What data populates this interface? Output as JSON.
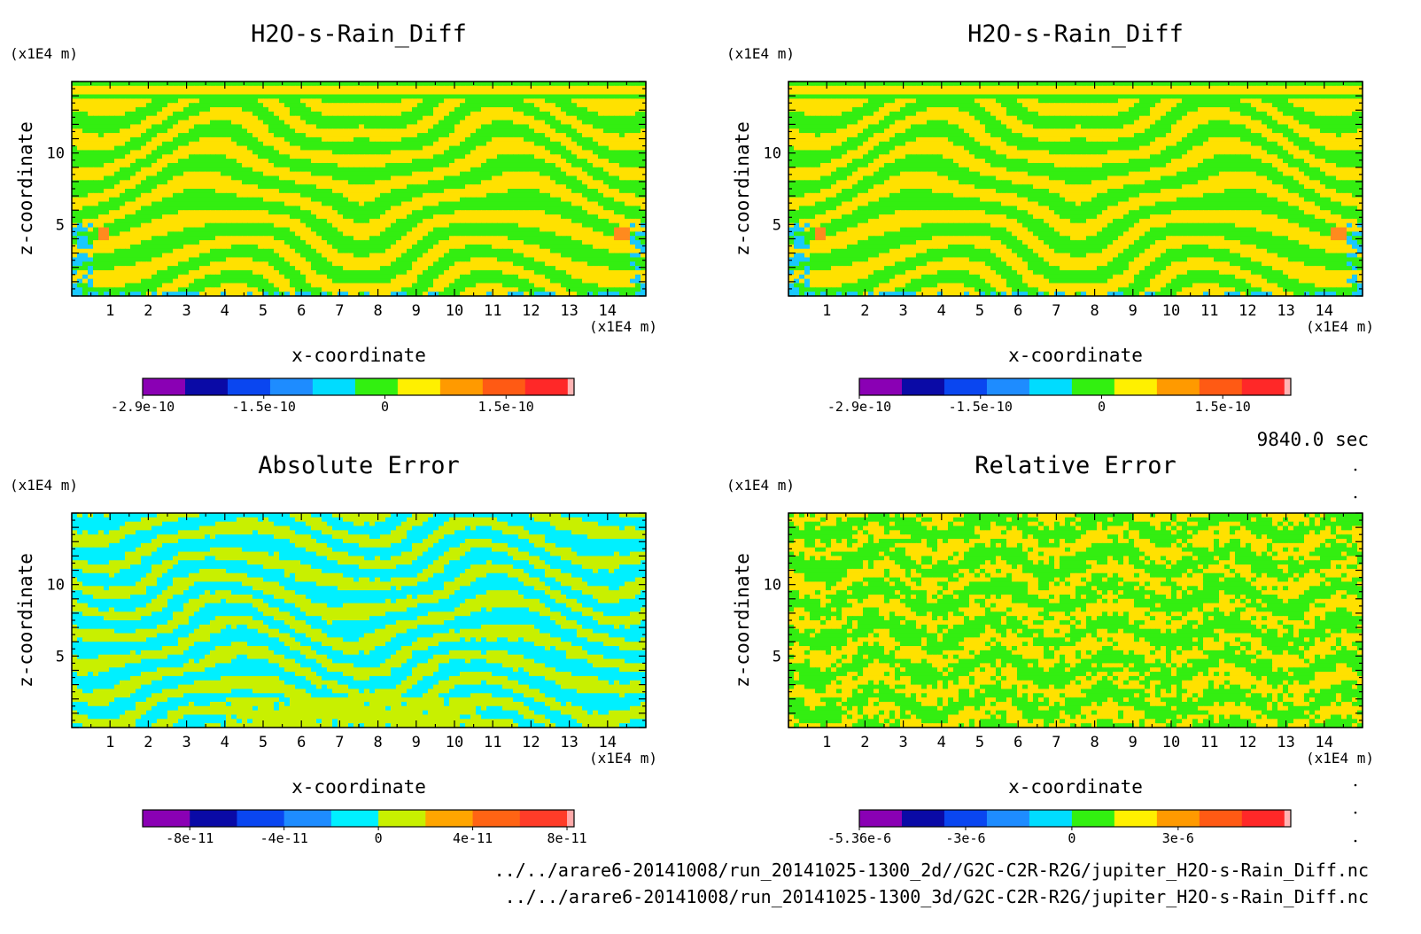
{
  "footer": {
    "time": "9840.0 sec",
    "file_1": "../../arare6-20141008/run_20141025-1300_2d//G2C-C2R-R2G/jupiter_H2O-s-Rain_Diff.nc",
    "file_2": "../../arare6-20141008/run_20141025-1300_3d/G2C-C2R-R2G/jupiter_H2O-s-Rain_Diff.nc"
  },
  "chart_data": [
    {
      "type": "heatmap",
      "title": "H2O-s-Rain_Diff",
      "xlabel": "x-coordinate",
      "ylabel": "z-coordinate",
      "x_unit": "(x1E4 m)",
      "y_unit": "(x1E4 m)",
      "xlim": [
        0,
        15
      ],
      "ylim": [
        0,
        15
      ],
      "x_ticks": [
        "1",
        "2",
        "3",
        "4",
        "5",
        "6",
        "7",
        "8",
        "9",
        "10",
        "11",
        "12",
        "13",
        "14"
      ],
      "y_ticks": [
        "5",
        "10"
      ],
      "pattern_colors": [
        "#33ee11",
        "#ffe100",
        "#19c8ff",
        "#ff8a1e"
      ],
      "colorbar": {
        "colors": [
          "#8a00b4",
          "#0a0aa6",
          "#0a46f0",
          "#1e8cff",
          "#00dcff",
          "#32f010",
          "#fff000",
          "#ff9a00",
          "#ff5a14",
          "#ff2828",
          "#ffb4b4"
        ],
        "labels": [
          "-2.9e-10",
          "-1.5e-10",
          "0",
          "1.5e-10"
        ]
      }
    },
    {
      "type": "heatmap",
      "title": "H2O-s-Rain_Diff",
      "xlabel": "x-coordinate",
      "ylabel": "z-coordinate",
      "x_unit": "(x1E4 m)",
      "y_unit": "(x1E4 m)",
      "xlim": [
        0,
        15
      ],
      "ylim": [
        0,
        15
      ],
      "x_ticks": [
        "1",
        "2",
        "3",
        "4",
        "5",
        "6",
        "7",
        "8",
        "9",
        "10",
        "11",
        "12",
        "13",
        "14"
      ],
      "y_ticks": [
        "5",
        "10"
      ],
      "pattern_colors": [
        "#33ee11",
        "#ffe100",
        "#19c8ff",
        "#ff8a1e"
      ],
      "colorbar": {
        "colors": [
          "#8a00b4",
          "#0a0aa6",
          "#0a46f0",
          "#1e8cff",
          "#00dcff",
          "#32f010",
          "#fff000",
          "#ff9a00",
          "#ff5a14",
          "#ff2828",
          "#ffb4b4"
        ],
        "labels": [
          "-2.9e-10",
          "-1.5e-10",
          "0",
          "1.5e-10"
        ]
      }
    },
    {
      "type": "heatmap",
      "title": "Absolute Error",
      "xlabel": "x-coordinate",
      "ylabel": "z-coordinate",
      "x_unit": "(x1E4 m)",
      "y_unit": "(x1E4 m)",
      "xlim": [
        0,
        15
      ],
      "ylim": [
        0,
        15
      ],
      "x_ticks": [
        "1",
        "2",
        "3",
        "4",
        "5",
        "6",
        "7",
        "8",
        "9",
        "10",
        "11",
        "12",
        "13",
        "14"
      ],
      "y_ticks": [
        "5",
        "10"
      ],
      "pattern_colors": [
        "#00f0ff",
        "#c8f000",
        "#ffd400"
      ],
      "colorbar": {
        "colors": [
          "#8a00b4",
          "#0a0aa6",
          "#0a46f0",
          "#1e8cff",
          "#00f0ff",
          "#c8f000",
          "#ffa500",
          "#ff6414",
          "#ff3c28",
          "#ffaaaa"
        ],
        "labels": [
          "-8e-11",
          "-4e-11",
          "0",
          "4e-11",
          "8e-11"
        ]
      }
    },
    {
      "type": "heatmap",
      "title": "Relative Error",
      "xlabel": "x-coordinate",
      "ylabel": "z-coordinate",
      "x_unit": "(x1E4 m)",
      "y_unit": "(x1E4 m)",
      "xlim": [
        0,
        15
      ],
      "ylim": [
        0,
        15
      ],
      "x_ticks": [
        "1",
        "2",
        "3",
        "4",
        "5",
        "6",
        "7",
        "8",
        "9",
        "10",
        "11",
        "12",
        "13",
        "14"
      ],
      "y_ticks": [
        "5",
        "10"
      ],
      "pattern_colors": [
        "#33ee11",
        "#ffe100"
      ],
      "colorbar": {
        "colors": [
          "#8a00b4",
          "#0a0aa6",
          "#0a46f0",
          "#1e8cff",
          "#00dcff",
          "#32f010",
          "#fff000",
          "#ff9a00",
          "#ff5a14",
          "#ff2828",
          "#ffb4b4"
        ],
        "labels": [
          "-5.36e-6",
          "-3e-6",
          "0",
          "3e-6"
        ]
      }
    }
  ]
}
